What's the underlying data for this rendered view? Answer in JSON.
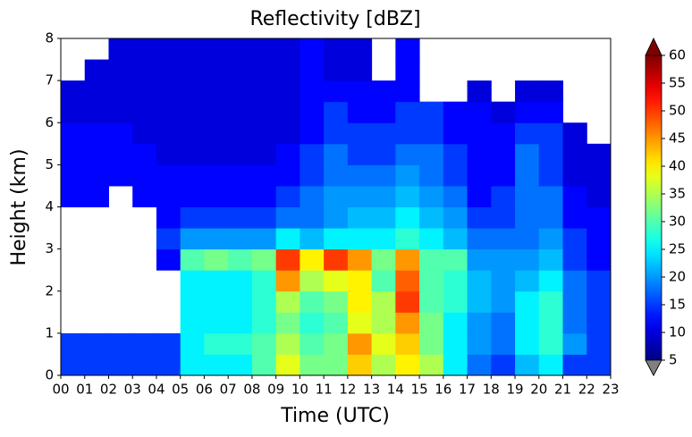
{
  "chart_data": {
    "type": "heatmap",
    "title": "Reflectivity [dBZ]",
    "x_label": "Time (UTC)",
    "y_label": "Height (km)",
    "xlim": [
      0,
      23
    ],
    "ylim": [
      0,
      8
    ],
    "xticks": [
      {
        "value": 0,
        "label": "00"
      },
      {
        "value": 1,
        "label": "01"
      },
      {
        "value": 2,
        "label": "02"
      },
      {
        "value": 3,
        "label": "03"
      },
      {
        "value": 4,
        "label": "04"
      },
      {
        "value": 5,
        "label": "05"
      },
      {
        "value": 6,
        "label": "06"
      },
      {
        "value": 7,
        "label": "07"
      },
      {
        "value": 8,
        "label": "08"
      },
      {
        "value": 9,
        "label": "09"
      },
      {
        "value": 10,
        "label": "10"
      },
      {
        "value": 11,
        "label": "11"
      },
      {
        "value": 12,
        "label": "12"
      },
      {
        "value": 13,
        "label": "13"
      },
      {
        "value": 14,
        "label": "14"
      },
      {
        "value": 15,
        "label": "15"
      },
      {
        "value": 16,
        "label": "16"
      },
      {
        "value": 17,
        "label": "17"
      },
      {
        "value": 18,
        "label": "18"
      },
      {
        "value": 19,
        "label": "19"
      },
      {
        "value": 20,
        "label": "20"
      },
      {
        "value": 21,
        "label": "21"
      },
      {
        "value": 22,
        "label": "22"
      },
      {
        "value": 23,
        "label": "23"
      }
    ],
    "yticks": [
      0,
      1,
      2,
      3,
      4,
      5,
      6,
      7,
      8
    ],
    "xbins": [
      0,
      1,
      2,
      3,
      4,
      5,
      6,
      7,
      8,
      9,
      10,
      11,
      12,
      13,
      14,
      15,
      16,
      17,
      18,
      19,
      20,
      21,
      22,
      23
    ],
    "ybins": [
      0,
      0.5,
      1,
      1.5,
      2,
      2.5,
      3,
      3.5,
      4,
      4.5,
      5,
      5.5,
      6,
      6.5,
      7,
      7.5,
      8
    ],
    "z": [
      [
        15,
        15,
        null,
        null,
        null,
        null,
        null,
        null,
        12,
        12,
        12,
        12,
        10,
        10,
        null,
        null
      ],
      [
        15,
        15,
        null,
        null,
        null,
        null,
        null,
        null,
        12,
        12,
        12,
        12,
        10,
        10,
        10,
        null
      ],
      [
        15,
        15,
        null,
        null,
        null,
        null,
        null,
        null,
        null,
        12,
        12,
        12,
        10,
        10,
        10,
        10
      ],
      [
        15,
        15,
        null,
        null,
        null,
        null,
        null,
        null,
        12,
        12,
        12,
        10,
        10,
        10,
        10,
        10
      ],
      [
        15,
        15,
        null,
        null,
        null,
        12,
        15,
        12,
        12,
        12,
        10,
        10,
        10,
        10,
        10,
        10
      ],
      [
        25,
        25,
        25,
        25,
        25,
        30,
        20,
        15,
        12,
        12,
        10,
        10,
        10,
        10,
        10,
        10
      ],
      [
        25,
        28,
        25,
        25,
        25,
        32,
        20,
        15,
        12,
        12,
        10,
        10,
        10,
        10,
        10,
        10
      ],
      [
        25,
        28,
        25,
        25,
        25,
        30,
        20,
        15,
        12,
        12,
        10,
        10,
        10,
        10,
        10,
        10
      ],
      [
        30,
        30,
        28,
        28,
        28,
        32,
        20,
        15,
        12,
        12,
        10,
        10,
        10,
        10,
        10,
        10
      ],
      [
        38,
        35,
        32,
        35,
        45,
        50,
        25,
        18,
        15,
        12,
        12,
        10,
        10,
        10,
        10,
        10
      ],
      [
        32,
        30,
        28,
        30,
        35,
        40,
        22,
        18,
        18,
        15,
        15,
        12,
        12,
        12,
        12,
        12
      ],
      [
        32,
        32,
        30,
        32,
        38,
        50,
        25,
        20,
        20,
        18,
        18,
        15,
        15,
        12,
        10,
        10
      ],
      [
        42,
        45,
        38,
        40,
        40,
        45,
        25,
        22,
        20,
        18,
        15,
        15,
        12,
        12,
        10,
        10
      ],
      [
        35,
        38,
        35,
        35,
        30,
        32,
        25,
        22,
        20,
        18,
        15,
        15,
        12,
        12,
        null,
        null
      ],
      [
        40,
        42,
        45,
        50,
        48,
        45,
        28,
        25,
        22,
        20,
        18,
        15,
        15,
        12,
        12,
        12
      ],
      [
        35,
        32,
        32,
        30,
        30,
        30,
        25,
        22,
        20,
        18,
        18,
        15,
        15,
        null,
        null,
        null
      ],
      [
        25,
        25,
        25,
        28,
        28,
        30,
        22,
        20,
        18,
        15,
        15,
        12,
        12,
        null,
        null,
        null
      ],
      [
        18,
        20,
        20,
        22,
        22,
        20,
        18,
        15,
        12,
        12,
        12,
        12,
        12,
        10,
        null,
        null
      ],
      [
        15,
        18,
        18,
        20,
        20,
        20,
        18,
        15,
        15,
        12,
        12,
        12,
        10,
        null,
        null,
        null
      ],
      [
        22,
        25,
        25,
        25,
        22,
        20,
        18,
        18,
        18,
        18,
        18,
        15,
        12,
        10,
        null,
        null
      ],
      [
        25,
        28,
        28,
        28,
        25,
        22,
        20,
        18,
        18,
        15,
        15,
        15,
        12,
        10,
        null,
        null
      ],
      [
        15,
        20,
        18,
        18,
        18,
        15,
        15,
        12,
        12,
        10,
        10,
        10,
        null,
        null,
        null,
        null
      ],
      [
        15,
        15,
        15,
        15,
        15,
        12,
        12,
        12,
        10,
        10,
        10,
        null,
        null,
        null,
        null,
        null
      ]
    ],
    "colormap": "jet",
    "clim": [
      5,
      60
    ],
    "cticks": [
      5,
      10,
      15,
      20,
      25,
      30,
      35,
      40,
      45,
      50,
      55,
      60
    ],
    "over_color": "#800000",
    "under_color": "#808080"
  }
}
